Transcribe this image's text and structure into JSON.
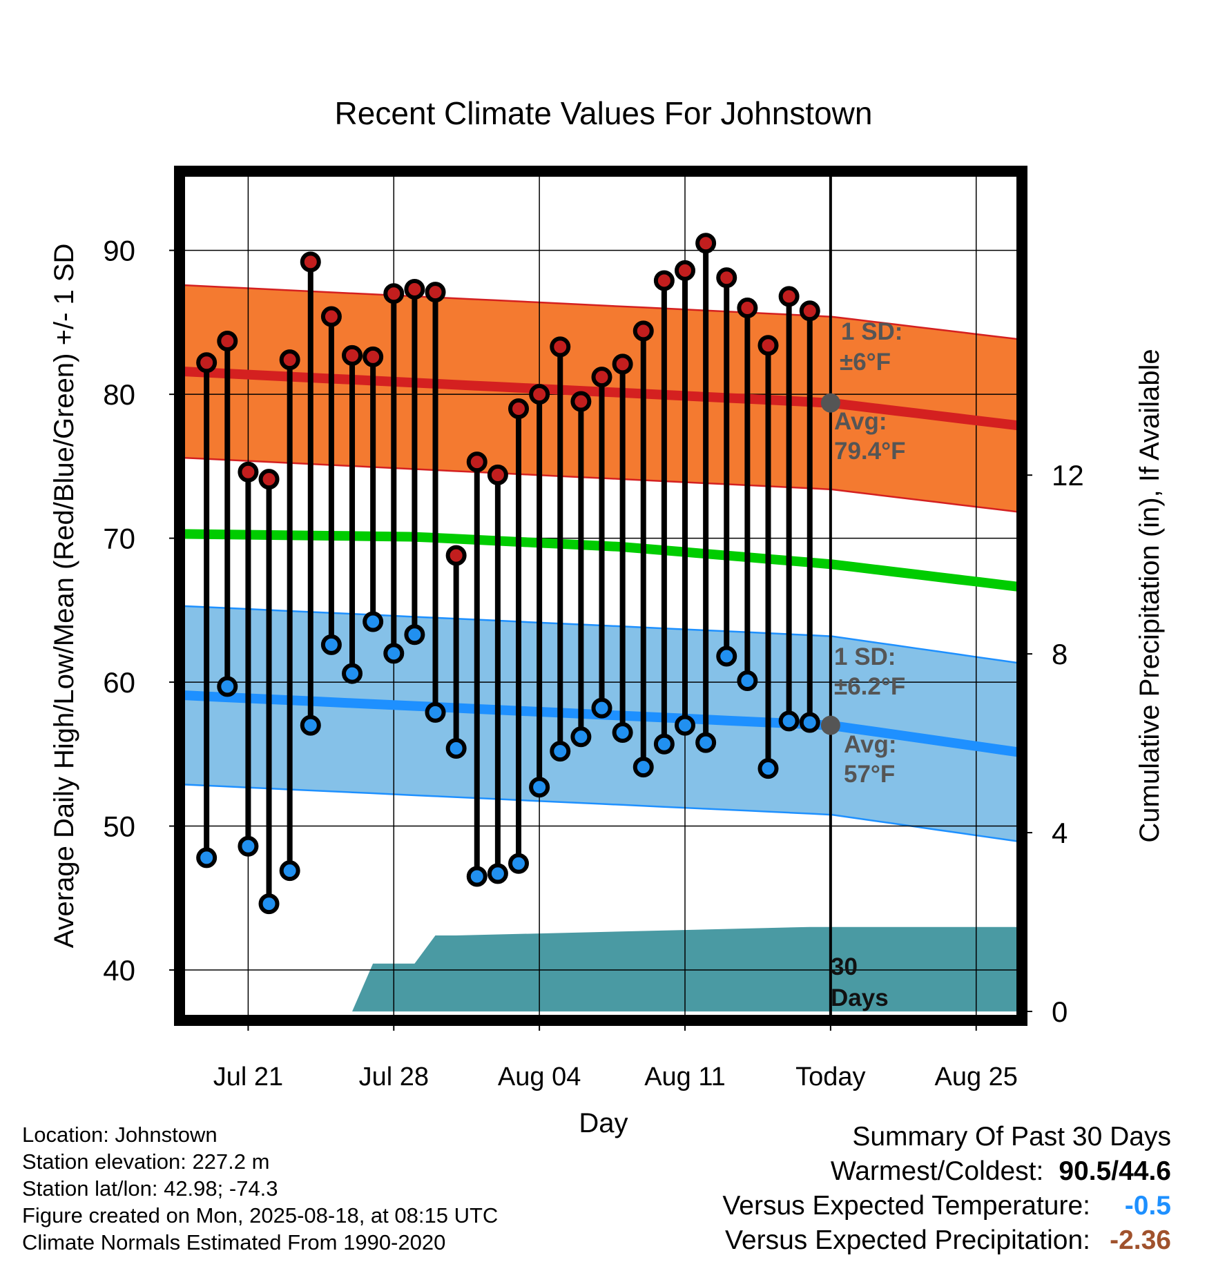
{
  "chart_data": {
    "type": "line",
    "title": "Recent Climate Values For Johnstown",
    "xlabel": "Day",
    "ylabel": "Average Daily High/Low/Mean (Red/Blue/Green) +/- 1 SD",
    "y2label": "Cumulative Precipitation (in), If Available",
    "ylim": [
      36.5,
      95.5
    ],
    "y2lim": [
      -0.2,
      18.8
    ],
    "yticks": [
      40,
      50,
      60,
      70,
      80,
      90
    ],
    "y2ticks": [
      0,
      4,
      8,
      12
    ],
    "xticks": [
      {
        "day": 2,
        "label": "Jul 21"
      },
      {
        "day": 9,
        "label": "Jul 28"
      },
      {
        "day": 16,
        "label": "Aug 04"
      },
      {
        "day": 23,
        "label": "Aug 11"
      },
      {
        "day": 30,
        "label": "Today"
      },
      {
        "day": 37,
        "label": "Aug 25"
      }
    ],
    "xrange": [
      -1.3,
      39.2
    ],
    "today_day": 30,
    "daily_highs": [
      82.2,
      83.7,
      74.6,
      74.1,
      82.4,
      89.2,
      85.4,
      82.7,
      82.6,
      87.0,
      87.3,
      87.1,
      68.8,
      75.3,
      74.4,
      79.0,
      80.0,
      83.3,
      79.5,
      81.2,
      82.1,
      84.4,
      87.9,
      88.6,
      90.5,
      88.1,
      86.0,
      83.4,
      86.8,
      85.8
    ],
    "daily_lows": [
      47.8,
      59.7,
      48.6,
      44.6,
      46.9,
      57.0,
      62.6,
      60.6,
      64.2,
      62.0,
      63.3,
      57.9,
      55.4,
      46.5,
      46.7,
      47.4,
      52.7,
      55.2,
      56.2,
      58.2,
      56.5,
      54.1,
      55.7,
      57.0,
      55.8,
      61.8,
      60.1,
      54.0,
      57.3,
      57.2
    ],
    "normal_high": {
      "days": [
        -1.3,
        30,
        39.2
      ],
      "avg": [
        81.6,
        79.4,
        77.8
      ],
      "sd": 6
    },
    "normal_low": {
      "days": [
        -1.3,
        30,
        39.2
      ],
      "avg": [
        59.1,
        57.0,
        55.1
      ],
      "sd": 6.2
    },
    "normal_mean": {
      "days": [
        -1.3,
        10,
        20,
        30,
        39.2
      ],
      "values": [
        70.3,
        70.1,
        69.4,
        68.2,
        66.6
      ]
    },
    "cumulative_precipitation": {
      "days": [
        7,
        8,
        9,
        10,
        11,
        12,
        29,
        39.2
      ],
      "values": [
        0,
        1.07,
        1.07,
        1.07,
        1.7,
        1.7,
        1.89,
        1.89
      ]
    },
    "colors": {
      "high_band": "#f47a30",
      "high_line": "#d42020",
      "low_band": "#85c1e8",
      "low_line": "#1e90ff",
      "mean_line": "#00cc00",
      "precip": "#4a9aa3",
      "high_dot": "#c21e1e",
      "low_dot": "#2190f0",
      "today_dot": "#555555"
    },
    "annotations": {
      "high_sd_label": "1 SD:",
      "high_sd_value": "±6°F",
      "high_avg_label": "Avg:",
      "high_avg_value": "79.4°F",
      "low_sd_label": "1 SD:",
      "low_sd_value": "±6.2°F",
      "low_avg_label": "Avg:",
      "low_avg_value": "57°F",
      "days_count": "30",
      "days_label": "Days"
    }
  },
  "info": {
    "location": "Location: Johnstown",
    "elevation": "Station elevation: 227.2 m",
    "latlon": "Station lat/lon: 42.98; -74.3",
    "created": "Figure created on Mon, 2025-08-18, at 08:15 UTC",
    "normals": "Climate Normals Estimated From 1990-2020"
  },
  "summary": {
    "title": "Summary Of Past 30 Days",
    "warmest_coldest_label": "Warmest/Coldest:",
    "warmest_coldest_value": "90.5/44.6",
    "temp_label": "Versus Expected Temperature:",
    "temp_value": "-0.5",
    "temp_color": "#1e90ff",
    "precip_label": "Versus Expected Precipitation:",
    "precip_value": "-2.36",
    "precip_color": "#a0522d"
  }
}
